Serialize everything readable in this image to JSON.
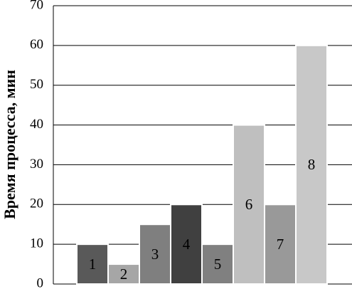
{
  "chart_data": {
    "type": "bar",
    "y_label": "Время процесса, мин",
    "categories": [
      "1",
      "2",
      "3",
      "4",
      "5",
      "6",
      "7",
      "8"
    ],
    "values": [
      10,
      5,
      15,
      20,
      10,
      40,
      20,
      60
    ],
    "colors": [
      "#595959",
      "#a6a6a6",
      "#7f7f7f",
      "#404040",
      "#808080",
      "#bfbfbf",
      "#999999",
      "#c8c8c8"
    ],
    "ylim": [
      0,
      70
    ],
    "yticks": [
      0,
      10,
      20,
      30,
      40,
      50,
      60,
      70
    ],
    "grid": true
  }
}
